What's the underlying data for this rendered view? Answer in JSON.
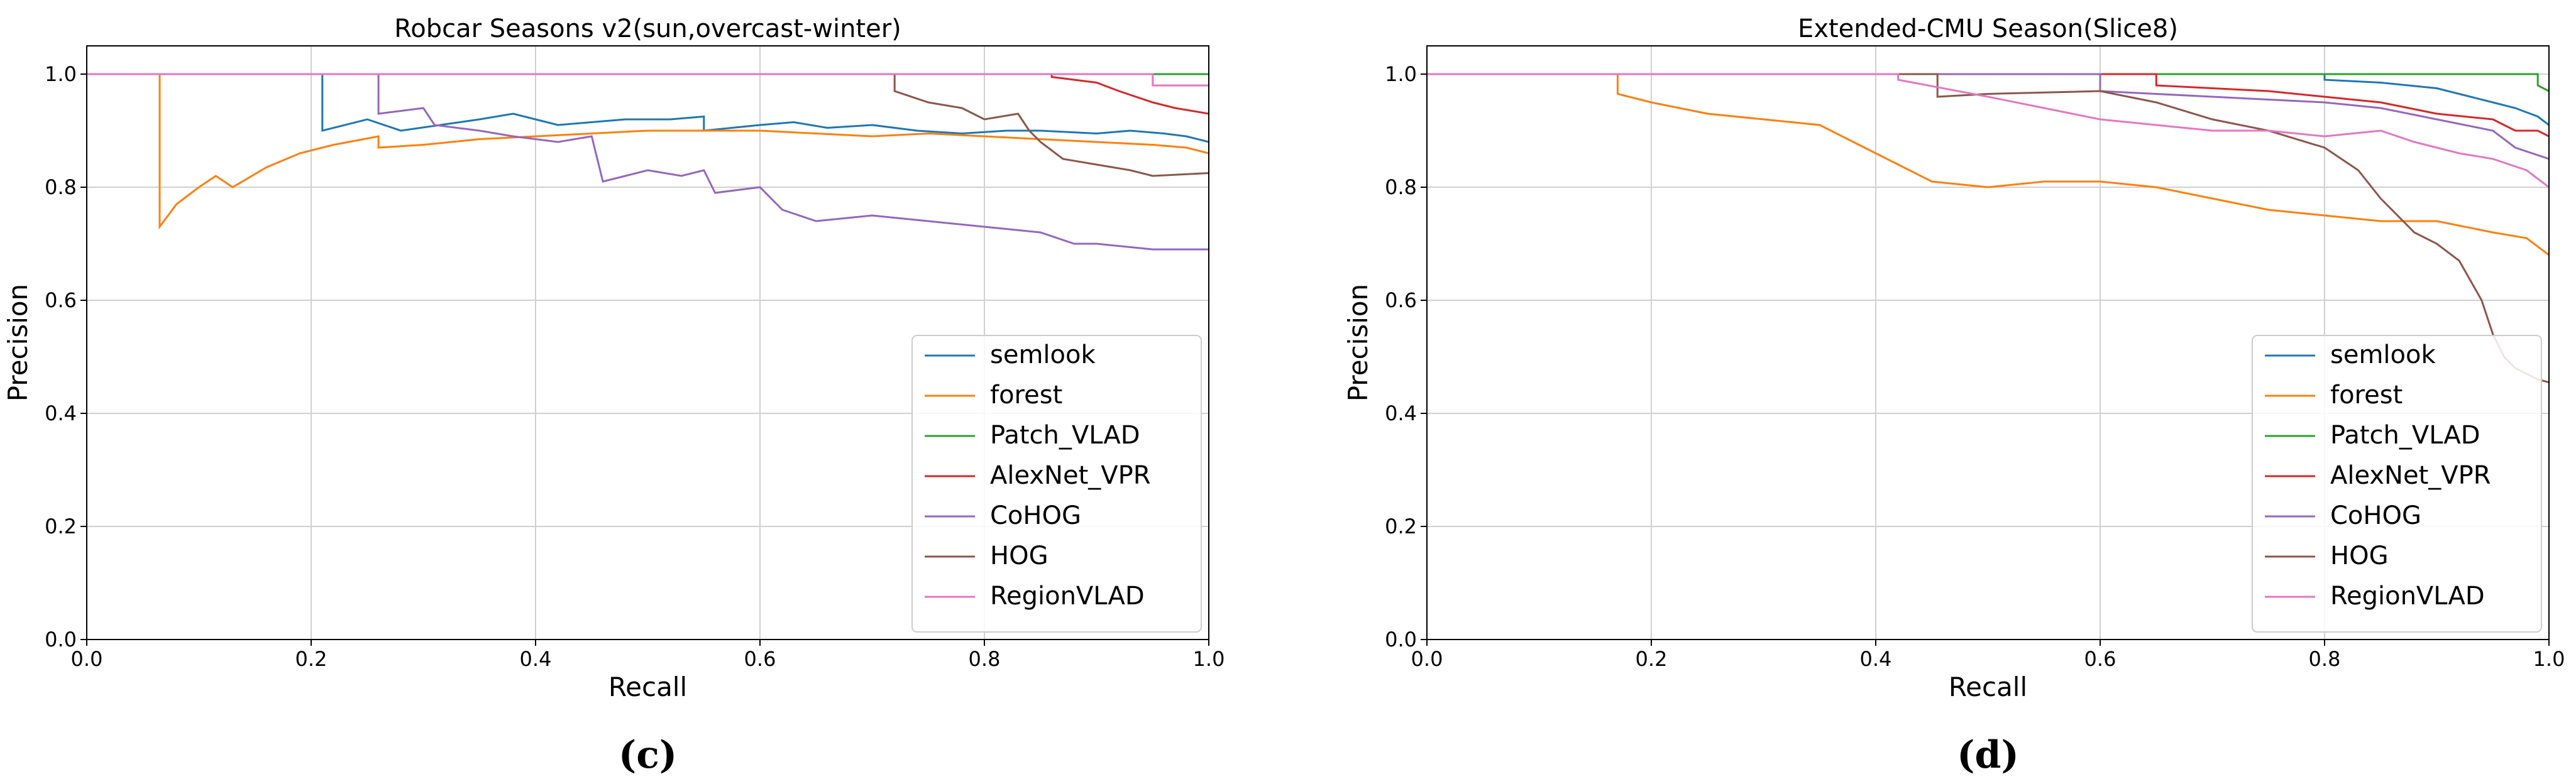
{
  "chart_data": [
    {
      "type": "line",
      "panel_label": "(c)",
      "title": "Robcar Seasons v2(sun,overcast-winter)",
      "xlabel": "Recall",
      "ylabel": "Precision",
      "xlim": [
        0.0,
        1.0
      ],
      "ylim": [
        0.0,
        1.05
      ],
      "xticks": [
        "0.0",
        "0.2",
        "0.4",
        "0.6",
        "0.8",
        "1.0"
      ],
      "yticks": [
        "0.0",
        "0.2",
        "0.4",
        "0.6",
        "0.8",
        "1.0"
      ],
      "grid": true,
      "legend_position": "lower-right",
      "series": [
        {
          "name": "semlook",
          "color": "#1f77b4",
          "x": [
            0.0,
            0.21,
            0.21,
            0.25,
            0.28,
            0.35,
            0.38,
            0.4,
            0.42,
            0.45,
            0.48,
            0.52,
            0.55,
            0.55,
            0.6,
            0.63,
            0.66,
            0.7,
            0.74,
            0.78,
            0.82,
            0.85,
            0.9,
            0.93,
            0.96,
            0.98,
            1.0
          ],
          "y": [
            1.0,
            1.0,
            0.9,
            0.92,
            0.9,
            0.92,
            0.93,
            0.92,
            0.91,
            0.915,
            0.92,
            0.92,
            0.925,
            0.9,
            0.91,
            0.915,
            0.905,
            0.91,
            0.9,
            0.895,
            0.9,
            0.9,
            0.895,
            0.9,
            0.895,
            0.89,
            0.88
          ]
        },
        {
          "name": "forest",
          "color": "#ff7f0e",
          "x": [
            0.0,
            0.065,
            0.065,
            0.08,
            0.1,
            0.115,
            0.13,
            0.16,
            0.19,
            0.22,
            0.26,
            0.26,
            0.3,
            0.35,
            0.4,
            0.45,
            0.5,
            0.55,
            0.6,
            0.65,
            0.7,
            0.75,
            0.8,
            0.85,
            0.9,
            0.95,
            0.98,
            1.0
          ],
          "y": [
            1.0,
            1.0,
            0.73,
            0.77,
            0.8,
            0.82,
            0.8,
            0.835,
            0.86,
            0.875,
            0.89,
            0.87,
            0.875,
            0.885,
            0.89,
            0.895,
            0.9,
            0.9,
            0.9,
            0.895,
            0.89,
            0.895,
            0.89,
            0.885,
            0.88,
            0.875,
            0.87,
            0.86
          ]
        },
        {
          "name": "Patch_VLAD",
          "color": "#2ca02c",
          "x": [
            0.0,
            0.87,
            0.88,
            1.0
          ],
          "y": [
            1.0,
            1.0,
            1.0,
            1.0
          ]
        },
        {
          "name": "AlexNet_VPR",
          "color": "#d62728",
          "x": [
            0.0,
            0.86,
            0.86,
            0.9,
            0.92,
            0.95,
            0.97,
            1.0
          ],
          "y": [
            1.0,
            1.0,
            0.995,
            0.985,
            0.97,
            0.95,
            0.94,
            0.93
          ]
        },
        {
          "name": "CoHOG",
          "color": "#9467bd",
          "x": [
            0.0,
            0.26,
            0.26,
            0.3,
            0.31,
            0.35,
            0.38,
            0.42,
            0.45,
            0.46,
            0.5,
            0.53,
            0.55,
            0.56,
            0.6,
            0.62,
            0.65,
            0.7,
            0.75,
            0.8,
            0.85,
            0.88,
            0.9,
            0.95,
            1.0
          ],
          "y": [
            1.0,
            1.0,
            0.93,
            0.94,
            0.91,
            0.9,
            0.89,
            0.88,
            0.89,
            0.81,
            0.83,
            0.82,
            0.83,
            0.79,
            0.8,
            0.76,
            0.74,
            0.75,
            0.74,
            0.73,
            0.72,
            0.7,
            0.7,
            0.69,
            0.69
          ]
        },
        {
          "name": "HOG",
          "color": "#8c564b",
          "x": [
            0.0,
            0.72,
            0.72,
            0.75,
            0.78,
            0.8,
            0.83,
            0.84,
            0.85,
            0.87,
            0.9,
            0.93,
            0.95,
            1.0
          ],
          "y": [
            1.0,
            1.0,
            0.97,
            0.95,
            0.94,
            0.92,
            0.93,
            0.9,
            0.88,
            0.85,
            0.84,
            0.83,
            0.82,
            0.825
          ]
        },
        {
          "name": "RegionVLAD",
          "color": "#e377c2",
          "x": [
            0.0,
            0.95,
            0.95,
            1.0
          ],
          "y": [
            1.0,
            1.0,
            0.98,
            0.98
          ]
        }
      ]
    },
    {
      "type": "line",
      "panel_label": "(d)",
      "title": "Extended-CMU Season(Slice8)",
      "xlabel": "Recall",
      "ylabel": "Precision",
      "xlim": [
        0.0,
        1.0
      ],
      "ylim": [
        0.0,
        1.05
      ],
      "xticks": [
        "0.0",
        "0.2",
        "0.4",
        "0.6",
        "0.8",
        "1.0"
      ],
      "yticks": [
        "0.0",
        "0.2",
        "0.4",
        "0.6",
        "0.8",
        "1.0"
      ],
      "grid": true,
      "legend_position": "lower-right",
      "series": [
        {
          "name": "semlook",
          "color": "#1f77b4",
          "x": [
            0.0,
            0.8,
            0.8,
            0.85,
            0.9,
            0.93,
            0.95,
            0.97,
            0.99,
            1.0
          ],
          "y": [
            1.0,
            1.0,
            0.99,
            0.985,
            0.975,
            0.96,
            0.95,
            0.94,
            0.925,
            0.91
          ]
        },
        {
          "name": "forest",
          "color": "#ff7f0e",
          "x": [
            0.0,
            0.17,
            0.17,
            0.2,
            0.25,
            0.3,
            0.35,
            0.38,
            0.4,
            0.43,
            0.45,
            0.5,
            0.55,
            0.6,
            0.65,
            0.7,
            0.75,
            0.8,
            0.85,
            0.9,
            0.95,
            0.98,
            1.0
          ],
          "y": [
            1.0,
            1.0,
            0.965,
            0.95,
            0.93,
            0.92,
            0.91,
            0.88,
            0.86,
            0.83,
            0.81,
            0.8,
            0.81,
            0.81,
            0.8,
            0.78,
            0.76,
            0.75,
            0.74,
            0.74,
            0.72,
            0.71,
            0.68
          ]
        },
        {
          "name": "Patch_VLAD",
          "color": "#2ca02c",
          "x": [
            0.0,
            0.9,
            0.99,
            0.99,
            1.0
          ],
          "y": [
            1.0,
            1.0,
            1.0,
            0.98,
            0.97
          ]
        },
        {
          "name": "AlexNet_VPR",
          "color": "#d62728",
          "x": [
            0.0,
            0.65,
            0.65,
            0.75,
            0.85,
            0.9,
            0.95,
            0.97,
            0.99,
            1.0
          ],
          "y": [
            1.0,
            1.0,
            0.98,
            0.97,
            0.95,
            0.93,
            0.92,
            0.9,
            0.9,
            0.89
          ]
        },
        {
          "name": "CoHOG",
          "color": "#9467bd",
          "x": [
            0.0,
            0.6,
            0.6,
            0.7,
            0.8,
            0.85,
            0.9,
            0.95,
            0.97,
            1.0
          ],
          "y": [
            1.0,
            1.0,
            0.97,
            0.96,
            0.95,
            0.94,
            0.92,
            0.9,
            0.87,
            0.85
          ]
        },
        {
          "name": "HOG",
          "color": "#8c564b",
          "x": [
            0.0,
            0.455,
            0.455,
            0.5,
            0.6,
            0.65,
            0.7,
            0.75,
            0.8,
            0.83,
            0.85,
            0.88,
            0.9,
            0.92,
            0.94,
            0.95,
            0.96,
            0.97,
            0.99,
            1.0
          ],
          "y": [
            1.0,
            1.0,
            0.96,
            0.965,
            0.97,
            0.95,
            0.92,
            0.9,
            0.87,
            0.83,
            0.78,
            0.72,
            0.7,
            0.67,
            0.6,
            0.54,
            0.5,
            0.48,
            0.46,
            0.455
          ]
        },
        {
          "name": "RegionVLAD",
          "color": "#e377c2",
          "x": [
            0.0,
            0.42,
            0.42,
            0.5,
            0.55,
            0.6,
            0.65,
            0.7,
            0.75,
            0.8,
            0.85,
            0.88,
            0.9,
            0.92,
            0.95,
            0.98,
            1.0
          ],
          "y": [
            1.0,
            1.0,
            0.99,
            0.96,
            0.94,
            0.92,
            0.91,
            0.9,
            0.9,
            0.89,
            0.9,
            0.88,
            0.87,
            0.86,
            0.85,
            0.83,
            0.8
          ]
        }
      ]
    }
  ]
}
